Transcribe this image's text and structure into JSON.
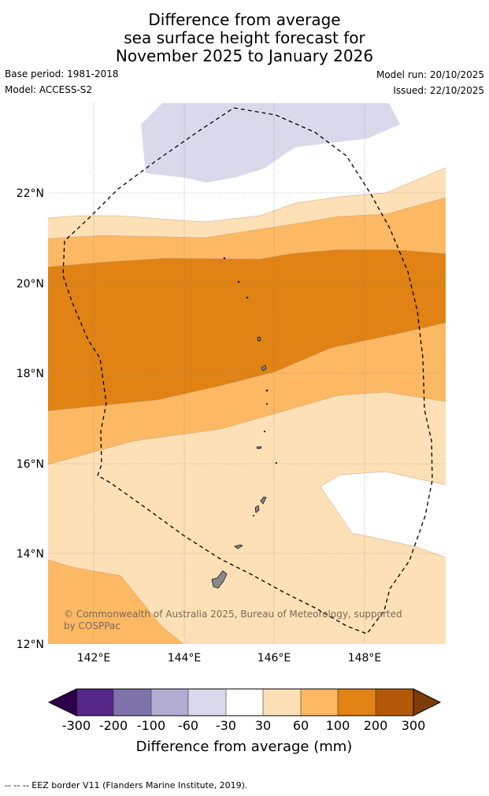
{
  "title": {
    "line1": "Difference from average",
    "line2": "sea surface height forecast for",
    "line3": "November 2025 to January 2026"
  },
  "meta": {
    "base_period": "Base period: 1981-2018",
    "model": "Model: ACCESS-S2",
    "model_run": "Model run: 20/10/2025",
    "issued": "Issued: 22/10/2025"
  },
  "map": {
    "lat_labels": [
      "22°N",
      "20°N",
      "18°N",
      "16°N",
      "14°N",
      "12°N"
    ],
    "lon_labels": [
      "142°E",
      "144°E",
      "146°E",
      "148°E"
    ],
    "copyright_line1": "© Commonwealth of Australia 2025, Bureau of Meteorology, supported",
    "copyright_line2": "by COSPPac"
  },
  "colorbar": {
    "tick_labels": [
      "-300",
      "-200",
      "-100",
      "-60",
      "-30",
      "30",
      "60",
      "100",
      "200",
      "300"
    ],
    "label": "Difference from average (mm)",
    "colors": {
      "below_min": "#2d004b",
      "m300_m200": "#542788",
      "m200_m100": "#8073ac",
      "m100_m60": "#b2abd2",
      "m60_m30": "#d8daeb",
      "m30_30": "#ffffff",
      "p30_60": "#fee0b6",
      "p60_100": "#fdb863",
      "p100_200": "#e08214",
      "p200_300": "#b35806",
      "above_max": "#7f3b08"
    }
  },
  "footnote": "--  --  -- EEZ border V11 (Flanders Marine Institute, 2019)."
}
